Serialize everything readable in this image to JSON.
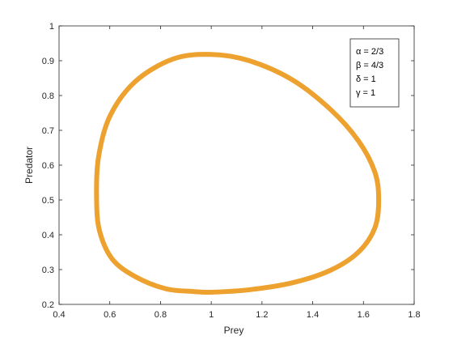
{
  "chart_data": {
    "type": "line",
    "title": "",
    "xlabel": "Prey",
    "ylabel": "Predator",
    "xlim": [
      0.4,
      1.8
    ],
    "ylim": [
      0.2,
      1.0
    ],
    "xticks": [
      "0.4",
      "0.6",
      "0.8",
      "1",
      "1.2",
      "1.4",
      "1.6",
      "1.8"
    ],
    "yticks": [
      "0.2",
      "0.3",
      "0.4",
      "0.5",
      "0.6",
      "0.7",
      "0.8",
      "0.9",
      "1"
    ],
    "grid": false,
    "legend_position": "top-right",
    "annotation_lines": [
      "α = 2/3",
      "β = 4/3",
      "δ = 1",
      "γ = 1"
    ],
    "series_color": "#EDA12F",
    "series": [
      {
        "x": [
          1.0,
          1.15,
          1.32,
          1.47,
          1.58,
          1.645,
          1.66,
          1.645,
          1.58,
          1.47,
          1.32,
          1.15,
          1.0,
          0.85,
          0.7,
          0.6,
          0.555,
          0.548,
          0.56,
          0.61,
          0.7,
          0.82,
          0.93,
          1.0
        ],
        "y": [
          0.235,
          0.242,
          0.262,
          0.298,
          0.35,
          0.42,
          0.5,
          0.58,
          0.67,
          0.76,
          0.845,
          0.9,
          0.918,
          0.905,
          0.84,
          0.74,
          0.62,
          0.5,
          0.41,
          0.33,
          0.28,
          0.245,
          0.237,
          0.235
        ]
      }
    ]
  }
}
